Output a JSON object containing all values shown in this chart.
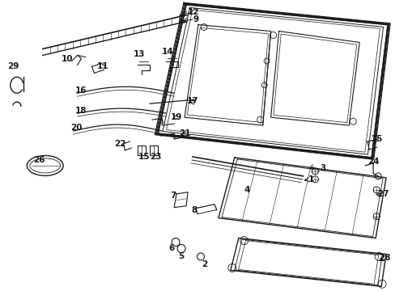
{
  "bg_color": "#ffffff",
  "fig_width": 4.89,
  "fig_height": 3.6,
  "dpi": 100,
  "line_color": "#1a1a1a",
  "lw_main": 1.0,
  "lw_thin": 0.5
}
